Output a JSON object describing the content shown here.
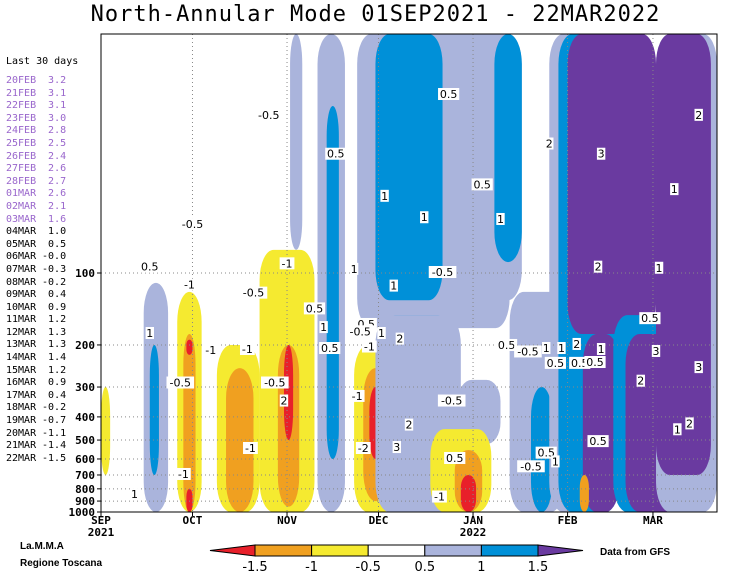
{
  "title": "North-Annular Mode 01SEP2021 - 22MAR2022",
  "side_panel": {
    "title": "Last 30 days",
    "entries": [
      {
        "date": "20FEB",
        "value": "3.2",
        "color": "#9966cc"
      },
      {
        "date": "21FEB",
        "value": "3.1",
        "color": "#9966cc"
      },
      {
        "date": "22FEB",
        "value": "3.1",
        "color": "#9966cc"
      },
      {
        "date": "23FEB",
        "value": "3.0",
        "color": "#9966cc"
      },
      {
        "date": "24FEB",
        "value": "2.8",
        "color": "#9966cc"
      },
      {
        "date": "25FEB",
        "value": "2.5",
        "color": "#9966cc"
      },
      {
        "date": "26FEB",
        "value": "2.4",
        "color": "#9966cc"
      },
      {
        "date": "27FEB",
        "value": "2.6",
        "color": "#9966cc"
      },
      {
        "date": "28FEB",
        "value": "2.7",
        "color": "#9966cc"
      },
      {
        "date": "01MAR",
        "value": "2.6",
        "color": "#9966cc"
      },
      {
        "date": "02MAR",
        "value": "2.1",
        "color": "#9966cc"
      },
      {
        "date": "03MAR",
        "value": "1.6",
        "color": "#9966cc"
      },
      {
        "date": "04MAR",
        "value": "1.0",
        "color": "#000000"
      },
      {
        "date": "05MAR",
        "value": "0.5",
        "color": "#000000"
      },
      {
        "date": "06MAR",
        "value": "-0.0",
        "color": "#000000"
      },
      {
        "date": "07MAR",
        "value": "-0.3",
        "color": "#000000"
      },
      {
        "date": "08MAR",
        "value": "-0.2",
        "color": "#000000"
      },
      {
        "date": "09MAR",
        "value": "0.4",
        "color": "#000000"
      },
      {
        "date": "10MAR",
        "value": "0.9",
        "color": "#000000"
      },
      {
        "date": "11MAR",
        "value": "1.2",
        "color": "#000000"
      },
      {
        "date": "12MAR",
        "value": "1.3",
        "color": "#000000"
      },
      {
        "date": "13MAR",
        "value": "1.3",
        "color": "#000000"
      },
      {
        "date": "14MAR",
        "value": "1.4",
        "color": "#000000"
      },
      {
        "date": "15MAR",
        "value": "1.2",
        "color": "#000000"
      },
      {
        "date": "16MAR",
        "value": "0.9",
        "color": "#000000"
      },
      {
        "date": "17MAR",
        "value": "0.4",
        "color": "#000000"
      },
      {
        "date": "18MAR",
        "value": "-0.2",
        "color": "#000000"
      },
      {
        "date": "19MAR",
        "value": "-0.7",
        "color": "#000000"
      },
      {
        "date": "20MAR",
        "value": "-1.1",
        "color": "#000000"
      },
      {
        "date": "21MAR",
        "value": "-1.4",
        "color": "#000000"
      },
      {
        "date": "22MAR",
        "value": "-1.5",
        "color": "#000000"
      }
    ]
  },
  "chart_data": {
    "type": "heatmap",
    "title": "North-Annular Mode 01SEP2021 - 22MAR2022",
    "x_axis": {
      "range": [
        "2021-09-01",
        "2022-03-22"
      ],
      "ticks": [
        {
          "label": "SEP",
          "sublabel": "2021",
          "date": "2021-09-01",
          "day": 0
        },
        {
          "label": "OCT",
          "sublabel": "",
          "date": "2021-10-01",
          "day": 30
        },
        {
          "label": "NOV",
          "sublabel": "",
          "date": "2021-11-01",
          "day": 61
        },
        {
          "label": "DEC",
          "sublabel": "",
          "date": "2021-12-01",
          "day": 91
        },
        {
          "label": "JAN",
          "sublabel": "2022",
          "date": "2022-01-01",
          "day": 122
        },
        {
          "label": "FEB",
          "sublabel": "",
          "date": "2022-02-01",
          "day": 153
        },
        {
          "label": "MAR",
          "sublabel": "",
          "date": "2022-03-01",
          "day": 181
        }
      ],
      "end_day": 202
    },
    "y_axis": {
      "label": "",
      "scale": "log",
      "inverted": true,
      "range_hPa": [
        1000,
        10
      ],
      "ticks": [
        100,
        200,
        300,
        400,
        500,
        600,
        700,
        800,
        900,
        1000
      ],
      "grid_dotted_at": [
        100,
        200,
        300,
        400,
        500,
        600,
        700,
        800,
        900,
        1000
      ]
    },
    "levels": [
      -1.5,
      -1,
      -0.5,
      0.5,
      1,
      1.5
    ],
    "colors": [
      "#e8202a",
      "#f0a020",
      "#f5ea30",
      "#ffffff",
      "#aab4dc",
      "#0090d8",
      "#6a3aa0"
    ],
    "colorbar_labels": [
      "-1.5",
      "-1",
      "-0.5",
      "0.5",
      "1",
      "1.5"
    ],
    "regions": [
      {
        "value_class": 1,
        "x": [
          62,
          66
        ],
        "p": [
          10,
          80
        ]
      },
      {
        "value_class": -1,
        "x": [
          52,
          70
        ],
        "p": [
          80,
          1000
        ]
      },
      {
        "value_class": -2,
        "x": [
          58,
          65
        ],
        "p": [
          200,
          950
        ]
      },
      {
        "value_class": -3,
        "x": [
          60,
          63
        ],
        "p": [
          200,
          500
        ]
      },
      {
        "value_class": -1,
        "x": [
          25,
          33
        ],
        "p": [
          120,
          1000
        ]
      },
      {
        "value_class": -2,
        "x": [
          27,
          31
        ],
        "p": [
          180,
          1000
        ]
      },
      {
        "value_class": -3,
        "x": [
          28,
          30
        ],
        "p": [
          190,
          220
        ]
      },
      {
        "value_class": -3,
        "x": [
          28,
          30
        ],
        "p": [
          800,
          1000
        ]
      },
      {
        "value_class": -1,
        "x": [
          38,
          52
        ],
        "p": [
          200,
          1000
        ]
      },
      {
        "value_class": -2,
        "x": [
          41,
          50
        ],
        "p": [
          250,
          1000
        ]
      },
      {
        "value_class": -1,
        "x": [
          0,
          3
        ],
        "p": [
          300,
          700
        ]
      },
      {
        "value_class": 1,
        "x": [
          14,
          22
        ],
        "p": [
          110,
          1000
        ]
      },
      {
        "value_class": 2,
        "x": [
          16,
          19
        ],
        "p": [
          200,
          700
        ]
      },
      {
        "value_class": 1,
        "x": [
          71,
          80
        ],
        "p": [
          10,
          1000
        ]
      },
      {
        "value_class": 2,
        "x": [
          74,
          78
        ],
        "p": [
          20,
          600
        ]
      },
      {
        "value_class": -1,
        "x": [
          83,
          97
        ],
        "p": [
          200,
          1000
        ]
      },
      {
        "value_class": -2,
        "x": [
          86,
          94
        ],
        "p": [
          250,
          900
        ]
      },
      {
        "value_class": -3,
        "x": [
          88,
          92
        ],
        "p": [
          300,
          600
        ]
      },
      {
        "value_class": 1,
        "x": [
          84,
          134
        ],
        "p": [
          10,
          170
        ]
      },
      {
        "value_class": 2,
        "x": [
          90,
          112
        ],
        "p": [
          10,
          130
        ]
      },
      {
        "value_class": 3,
        "x": [
          95,
          110
        ],
        "p": [
          170,
          1000
        ]
      },
      {
        "value_class": 2,
        "x": [
          92,
          115
        ],
        "p": [
          150,
          1000
        ]
      },
      {
        "value_class": 1,
        "x": [
          90,
          118
        ],
        "p": [
          150,
          1000
        ]
      },
      {
        "value_class": 1,
        "x": [
          117,
          131
        ],
        "p": [
          280,
          520
        ]
      },
      {
        "value_class": -1,
        "x": [
          108,
          128
        ],
        "p": [
          450,
          1000
        ]
      },
      {
        "value_class": -2,
        "x": [
          116,
          125
        ],
        "p": [
          550,
          1000
        ]
      },
      {
        "value_class": -3,
        "x": [
          118,
          123
        ],
        "p": [
          700,
          1000
        ]
      },
      {
        "value_class": 1,
        "x": [
          124,
          138
        ],
        "p": [
          10,
          130
        ]
      },
      {
        "value_class": 2,
        "x": [
          129,
          138
        ],
        "p": [
          10,
          90
        ]
      },
      {
        "value_class": 1,
        "x": [
          134,
          152
        ],
        "p": [
          120,
          1000
        ]
      },
      {
        "value_class": 2,
        "x": [
          141,
          148
        ],
        "p": [
          300,
          1000
        ]
      },
      {
        "value_class": 1,
        "x": [
          147,
          170
        ],
        "p": [
          10,
          1000
        ]
      },
      {
        "value_class": 2,
        "x": [
          150,
          170
        ],
        "p": [
          10,
          1000
        ]
      },
      {
        "value_class": 3,
        "x": [
          153,
          182
        ],
        "p": [
          10,
          180
        ]
      },
      {
        "value_class": 3,
        "x": [
          158,
          170
        ],
        "p": [
          180,
          1000
        ]
      },
      {
        "value_class": 2,
        "x": [
          168,
          196
        ],
        "p": [
          150,
          1000
        ]
      },
      {
        "value_class": 3,
        "x": [
          172,
          190
        ],
        "p": [
          180,
          1000
        ]
      },
      {
        "value_class": 1,
        "x": [
          182,
          202
        ],
        "p": [
          10,
          1000
        ]
      },
      {
        "value_class": 3,
        "x": [
          182,
          200
        ],
        "p": [
          10,
          700
        ]
      },
      {
        "value_class": -2,
        "x": [
          157,
          160
        ],
        "p": [
          700,
          1000
        ]
      },
      {
        "value_class": -1,
        "x": [
          202,
          205
        ],
        "p": [
          10,
          20
        ]
      }
    ],
    "contour_labels": [
      {
        "text": "-0.5",
        "day": 55,
        "p": 22
      },
      {
        "text": "0.5",
        "day": 77,
        "p": 32
      },
      {
        "text": "0.5",
        "day": 114,
        "p": 18
      },
      {
        "text": "0.5",
        "day": 125,
        "p": 43
      },
      {
        "text": "2",
        "day": 147,
        "p": 29
      },
      {
        "text": "3",
        "day": 164,
        "p": 32
      },
      {
        "text": "2",
        "day": 196,
        "p": 22
      },
      {
        "text": "1",
        "day": 188,
        "p": 45
      },
      {
        "text": "1",
        "day": 93,
        "p": 48
      },
      {
        "text": "1",
        "day": 106,
        "p": 59
      },
      {
        "text": "1",
        "day": 131,
        "p": 60
      },
      {
        "text": "-0.5",
        "day": 30,
        "p": 63
      },
      {
        "text": "0.5",
        "day": 16,
        "p": 95
      },
      {
        "text": "-1",
        "day": 61,
        "p": 92
      },
      {
        "text": "1",
        "day": 83,
        "p": 97
      },
      {
        "text": "-0.5",
        "day": 112,
        "p": 100
      },
      {
        "text": "-1",
        "day": 29,
        "p": 113
      },
      {
        "text": "-0.5",
        "day": 50,
        "p": 122
      },
      {
        "text": "1",
        "day": 96,
        "p": 114
      },
      {
        "text": "2",
        "day": 163,
        "p": 95
      },
      {
        "text": "1",
        "day": 183,
        "p": 96
      },
      {
        "text": "0.5",
        "day": 70,
        "p": 142
      },
      {
        "text": "1",
        "day": 73,
        "p": 170
      },
      {
        "text": "0.5",
        "day": 87,
        "p": 165
      },
      {
        "text": "-0.5",
        "day": 85,
        "p": 177
      },
      {
        "text": "1",
        "day": 92,
        "p": 180
      },
      {
        "text": "2",
        "day": 98,
        "p": 190
      },
      {
        "text": "1",
        "day": 16,
        "p": 180
      },
      {
        "text": "-1",
        "day": 36,
        "p": 212
      },
      {
        "text": "-1",
        "day": 48,
        "p": 210
      },
      {
        "text": "0.5",
        "day": 75,
        "p": 208
      },
      {
        "text": "-1",
        "day": 88,
        "p": 205
      },
      {
        "text": "0.5",
        "day": 133,
        "p": 202
      },
      {
        "text": "-0.5",
        "day": 140,
        "p": 215
      },
      {
        "text": "1",
        "day": 146,
        "p": 208
      },
      {
        "text": "1",
        "day": 151,
        "p": 208
      },
      {
        "text": "2",
        "day": 156,
        "p": 200
      },
      {
        "text": "1",
        "day": 164,
        "p": 210
      },
      {
        "text": "3",
        "day": 182,
        "p": 214
      },
      {
        "text": "0.5",
        "day": 180,
        "p": 156
      },
      {
        "text": "0.5",
        "day": 149,
        "p": 240
      },
      {
        "text": "0.5",
        "day": 157,
        "p": 240
      },
      {
        "text": "0.5",
        "day": 162,
        "p": 238
      },
      {
        "text": "3",
        "day": 196,
        "p": 250
      },
      {
        "text": "-0.5",
        "day": 26,
        "p": 290
      },
      {
        "text": "-0.5",
        "day": 57,
        "p": 290
      },
      {
        "text": "2",
        "day": 177,
        "p": 285
      },
      {
        "text": "2",
        "day": 60,
        "p": 345
      },
      {
        "text": "-0.5",
        "day": 115,
        "p": 345
      },
      {
        "text": "-1",
        "day": 84,
        "p": 330
      },
      {
        "text": "2",
        "day": 101,
        "p": 435
      },
      {
        "text": "2",
        "day": 193,
        "p": 430
      },
      {
        "text": "1",
        "day": 189,
        "p": 455
      },
      {
        "text": "0.5",
        "day": 163,
        "p": 510
      },
      {
        "text": "3",
        "day": 97,
        "p": 540
      },
      {
        "text": "-1",
        "day": 49,
        "p": 545
      },
      {
        "text": "-2",
        "day": 86,
        "p": 545
      },
      {
        "text": "0.5",
        "day": 146,
        "p": 570
      },
      {
        "text": "-0.5",
        "day": 141,
        "p": 650
      },
      {
        "text": "0.5",
        "day": 116,
        "p": 600
      },
      {
        "text": "1",
        "day": 149,
        "p": 620
      },
      {
        "text": "-1",
        "day": 27,
        "p": 700
      },
      {
        "text": "1",
        "day": 11,
        "p": 850
      },
      {
        "text": "-1",
        "day": 111,
        "p": 870
      }
    ]
  },
  "credits": {
    "left_line1": "La.M.M.A",
    "left_line2": "Regione Toscana",
    "right": "Data from GFS"
  }
}
